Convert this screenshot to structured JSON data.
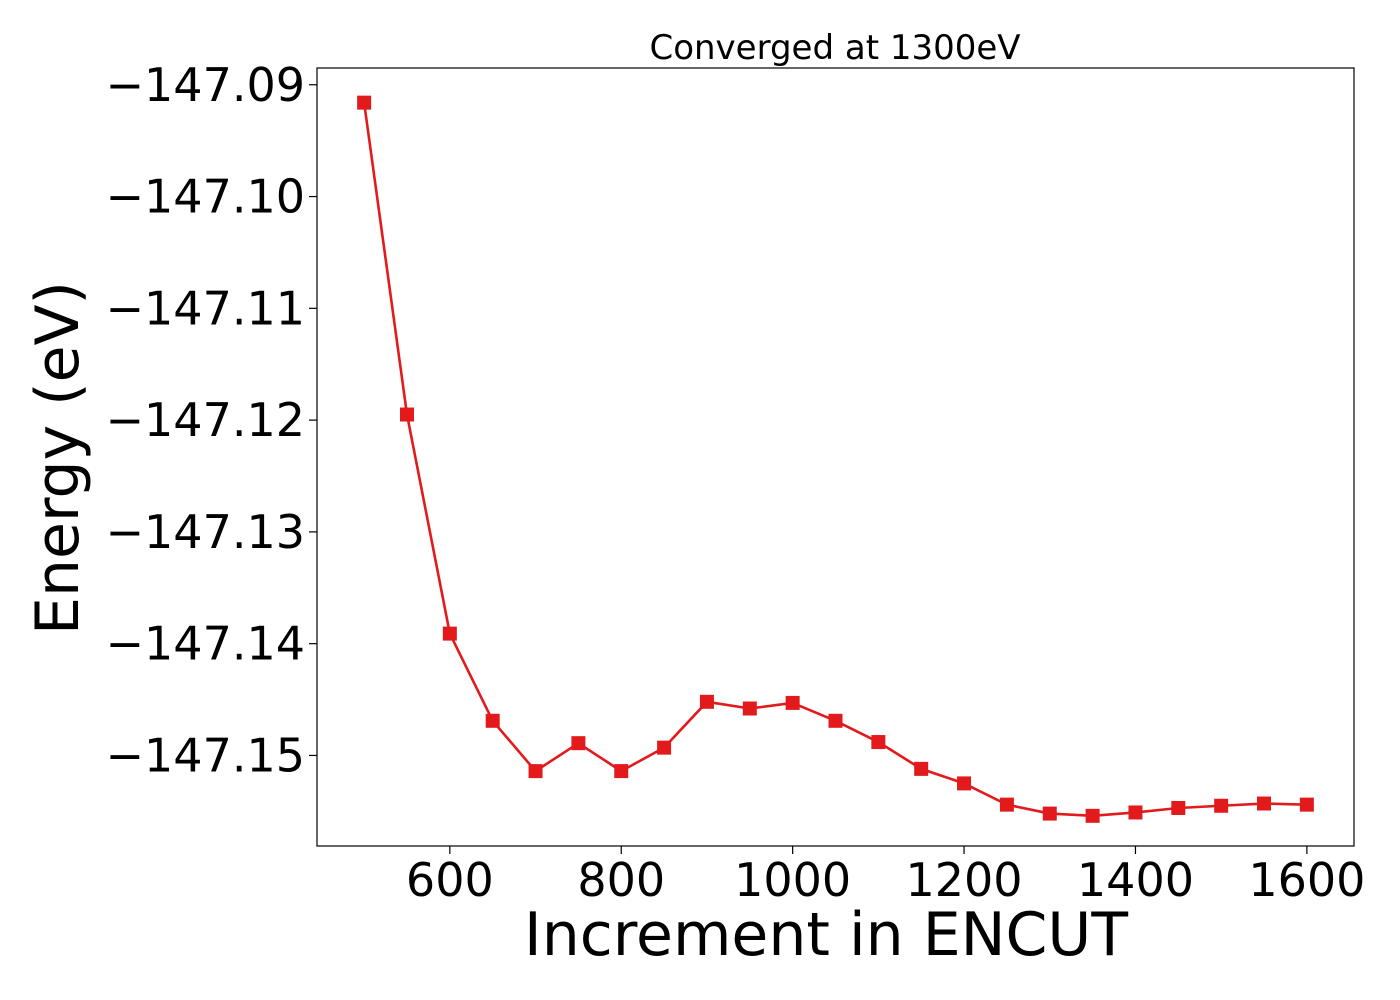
{
  "chart_data": {
    "type": "line",
    "title": "Converged at 1300eV",
    "xlabel": "Increment in ENCUT",
    "ylabel": "Energy (eV)",
    "xlim": [
      445,
      1655
    ],
    "ylim": [
      -147.1581,
      -147.0885
    ],
    "xticks": [
      600,
      800,
      1000,
      1200,
      1400,
      1600
    ],
    "xtick_labels": [
      "600",
      "800",
      "1000",
      "1200",
      "1400",
      "1600"
    ],
    "yticks": [
      -147.09,
      -147.1,
      -147.11,
      -147.12,
      -147.13,
      -147.14,
      -147.15
    ],
    "ytick_labels": [
      "−147.09",
      "−147.10",
      "−147.11",
      "−147.12",
      "−147.13",
      "−147.14",
      "−147.15"
    ],
    "grid": false,
    "legend": false,
    "series": [
      {
        "color": "#e31a1c",
        "marker": "square",
        "x": [
          500,
          550,
          600,
          650,
          700,
          750,
          800,
          850,
          900,
          950,
          1000,
          1050,
          1100,
          1150,
          1200,
          1250,
          1300,
          1350,
          1400,
          1450,
          1500,
          1550,
          1600
        ],
        "y": [
          -147.0916,
          -147.1195,
          -147.1391,
          -147.1469,
          -147.1514,
          -147.1489,
          -147.1514,
          -147.1493,
          -147.1452,
          -147.1458,
          -147.1453,
          -147.1469,
          -147.1488,
          -147.1512,
          -147.1525,
          -147.1544,
          -147.1552,
          -147.1554,
          -147.1551,
          -147.1547,
          -147.1545,
          -147.1543,
          -147.1544
        ]
      }
    ]
  }
}
